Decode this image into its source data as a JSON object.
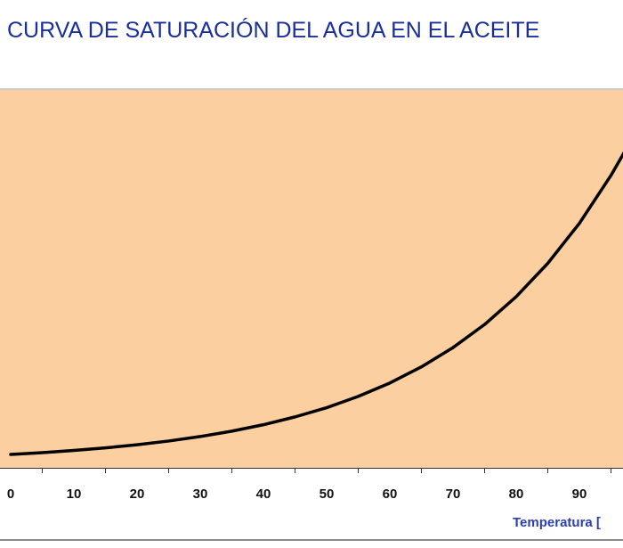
{
  "chart_data": {
    "type": "line",
    "title": "CURVA DE SATURACIÓN DEL AGUA EN EL ACEITE",
    "xlabel": "Temperatura [",
    "ylabel": "",
    "x_ticks": [
      "0",
      "10",
      "20",
      "30",
      "40",
      "50",
      "60",
      "70",
      "80",
      "90"
    ],
    "xlim": [
      0,
      100
    ],
    "grid": false,
    "legend": "none",
    "series": [
      {
        "x": [
          0,
          5,
          10,
          15,
          20,
          25,
          30,
          35,
          40,
          45,
          50,
          55,
          60,
          65,
          70,
          75,
          80,
          85,
          90,
          95,
          98
        ],
        "y": [
          0.0,
          1.04,
          2.28,
          3.78,
          5.57,
          7.73,
          10.3,
          13.4,
          17.1,
          21.6,
          26.9,
          33.4,
          41.1,
          50.4,
          61.5,
          74.8,
          90.8,
          110.0,
          133.0,
          160.6,
          179.6
        ]
      }
    ]
  },
  "colors": {
    "title": "#1a2e9c",
    "plot_background": "#fbcfa0",
    "curve": "#000000",
    "axis_title": "#2b3fb0",
    "frame": "#8a8a8a"
  }
}
